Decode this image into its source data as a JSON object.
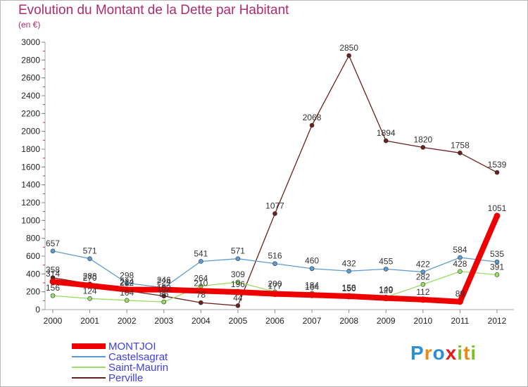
{
  "chart_data": {
    "type": "line",
    "title": "Evolution du Montant de la Dette par Habitant",
    "unit_label": "(en €)",
    "x": [
      "2000",
      "2001",
      "2002",
      "2003",
      "2004",
      "2005",
      "2006",
      "2007",
      "2008",
      "2009",
      "2010",
      "2011",
      "2012"
    ],
    "ylim": [
      0,
      3000
    ],
    "yticks": [
      0,
      200,
      400,
      600,
      800,
      1000,
      1200,
      1400,
      1600,
      1800,
      2000,
      2200,
      2400,
      2600,
      2800,
      3000
    ],
    "grid": false,
    "legend_position": "bottom-left",
    "series": [
      {
        "name": "MONTJOI",
        "color": "#ee0000",
        "values": [
          314,
          270,
          224,
          224,
          210,
          196,
          177,
          164,
          150,
          129,
          112,
          89,
          1051
        ],
        "labels": [
          "314",
          "270",
          "224",
          "224",
          "210",
          "196",
          "177",
          "164",
          "150",
          "129",
          "112",
          "89",
          "1051"
        ]
      },
      {
        "name": "Castelsagrat",
        "color": "#5d9cd2",
        "values": [
          657,
          571,
          298,
          246,
          541,
          571,
          516,
          460,
          432,
          455,
          422,
          584,
          535
        ],
        "labels": [
          "657",
          "571",
          "298",
          "246",
          "541",
          "571",
          "516",
          "460",
          "432",
          "455",
          "422",
          "584",
          "535"
        ]
      },
      {
        "name": "Saint-Maurin",
        "color": "#99dd66",
        "values": [
          156,
          124,
          104,
          86,
          264,
          309,
          200,
          184,
          158,
          140,
          282,
          428,
          391
        ],
        "labels": [
          "156",
          "124",
          "104",
          "86",
          "264",
          "309",
          "200",
          "184",
          "158",
          "140",
          "282",
          "428",
          "391"
        ]
      },
      {
        "name": "Perville",
        "color": "#6b2020",
        "values": [
          358,
          288,
          212,
          152,
          78,
          44,
          1077,
          2068,
          2850,
          1894,
          1820,
          1758,
          1539
        ],
        "labels": [
          "358",
          "288",
          "212",
          "152",
          "78",
          "44",
          "1077",
          "2068",
          "2850",
          "1894",
          "1820",
          "1758",
          "1539"
        ]
      }
    ]
  },
  "logo": {
    "letters": [
      "P",
      "r",
      "o",
      "x",
      "i",
      "t",
      "i"
    ],
    "colors": [
      "#2b8fd8",
      "#e98a18",
      "#2b8fd8",
      "#e31b1b",
      "#7cbf2a",
      "#e98a18",
      "#7cbf2a"
    ]
  }
}
